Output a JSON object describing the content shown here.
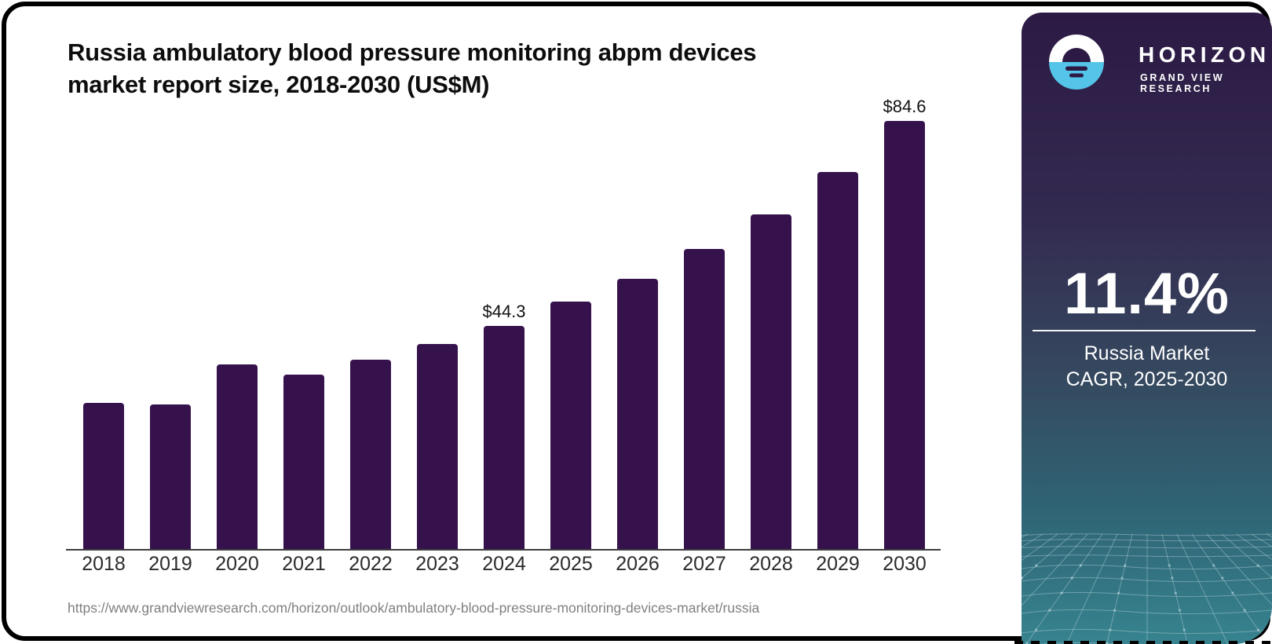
{
  "chart": {
    "title_line1": "Russia ambulatory blood pressure monitoring abpm devices",
    "title_line2": "market report size, 2018-2030 (US$M)"
  },
  "chart_data": {
    "type": "bar",
    "title": "Russia ambulatory blood pressure monitoring abpm devices market report size, 2018-2030 (US$M)",
    "categories": [
      "2018",
      "2019",
      "2020",
      "2021",
      "2022",
      "2023",
      "2024",
      "2025",
      "2026",
      "2027",
      "2028",
      "2029",
      "2030"
    ],
    "values": [
      29.0,
      28.8,
      36.7,
      34.7,
      37.6,
      40.7,
      44.3,
      49.0,
      53.5,
      59.4,
      66.2,
      74.5,
      84.6
    ],
    "value_labels": {
      "2024": "$44.3",
      "2030": "$84.6"
    },
    "unit": "US$M",
    "xlabel": "",
    "ylabel": "",
    "ylim": [
      0,
      90
    ],
    "grid": false,
    "legend": false,
    "bar_color": "#36124d"
  },
  "source_url": "https://www.grandviewresearch.com/horizon/outlook/ambulatory-blood-pressure-monitoring-devices-market/russia",
  "sidebar": {
    "brand": "HORIZON",
    "brand_subtitle": "GRAND VIEW RESEARCH",
    "stat_value": "11.4%",
    "stat_caption_line1": "Russia Market",
    "stat_caption_line2": "CAGR, 2025-2030",
    "colors": {
      "panel_top": "#2c1a44",
      "panel_bottom": "#37838f",
      "logo_blue": "#55c4e9",
      "bar": "#36124d"
    }
  }
}
